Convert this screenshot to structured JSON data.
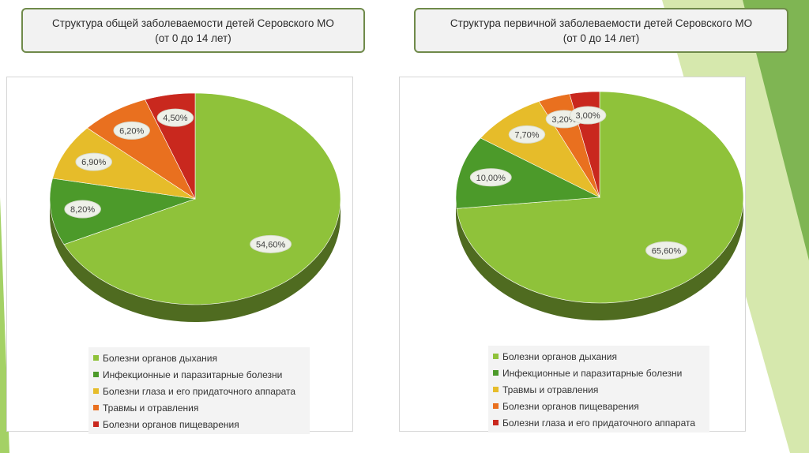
{
  "slide": {
    "left_title_line1": "Структура общей заболеваемости детей Серовского МО",
    "left_title_line2": "(от 0 до 14 лет)",
    "right_title_line1": "Структура первичной заболеваемости детей Серовского МО",
    "right_title_line2": "(от 0 до 14 лет)",
    "accent_colors": [
      "#8dc63f",
      "#5aa02c",
      "#b5d56a"
    ]
  },
  "chart_data": [
    {
      "type": "pie",
      "title": "Структура общей заболеваемости детей Серовского МО (от 0 до 14 лет)",
      "categories": [
        "Болезни органов дыхания",
        "Инфекционные и паразитарные болезни",
        "Болезни глаза и его придаточного аппарата",
        "Травмы и отравления",
        "Болезни органов пищеварения"
      ],
      "values": [
        54.6,
        8.2,
        6.9,
        6.2,
        4.5
      ],
      "labels": [
        "54,60%",
        "8,20%",
        "6,90%",
        "6,20%",
        "4,50%"
      ],
      "colors": [
        "#8fc23a",
        "#4c9a2a",
        "#e6bc2a",
        "#e9701f",
        "#c9281e"
      ],
      "style": "3d-pie",
      "legend_position": "bottom"
    },
    {
      "type": "pie",
      "title": "Структура первичной заболеваемости детей Серовского МО (от 0 до 14 лет)",
      "categories": [
        "Болезни органов дыхания",
        "Инфекционные и паразитарные болезни",
        "Травмы и отравления",
        "Болезни органов пищеварения",
        "Болезни глаза и его придаточного аппарата"
      ],
      "values": [
        65.6,
        10.0,
        7.7,
        3.2,
        3.0
      ],
      "labels": [
        "65,60%",
        "10,00%",
        "7,70%",
        "3,20%",
        "3,00%"
      ],
      "colors": [
        "#8fc23a",
        "#4c9a2a",
        "#e6bc2a",
        "#e9701f",
        "#c9281e"
      ],
      "style": "3d-pie",
      "legend_position": "bottom"
    }
  ]
}
